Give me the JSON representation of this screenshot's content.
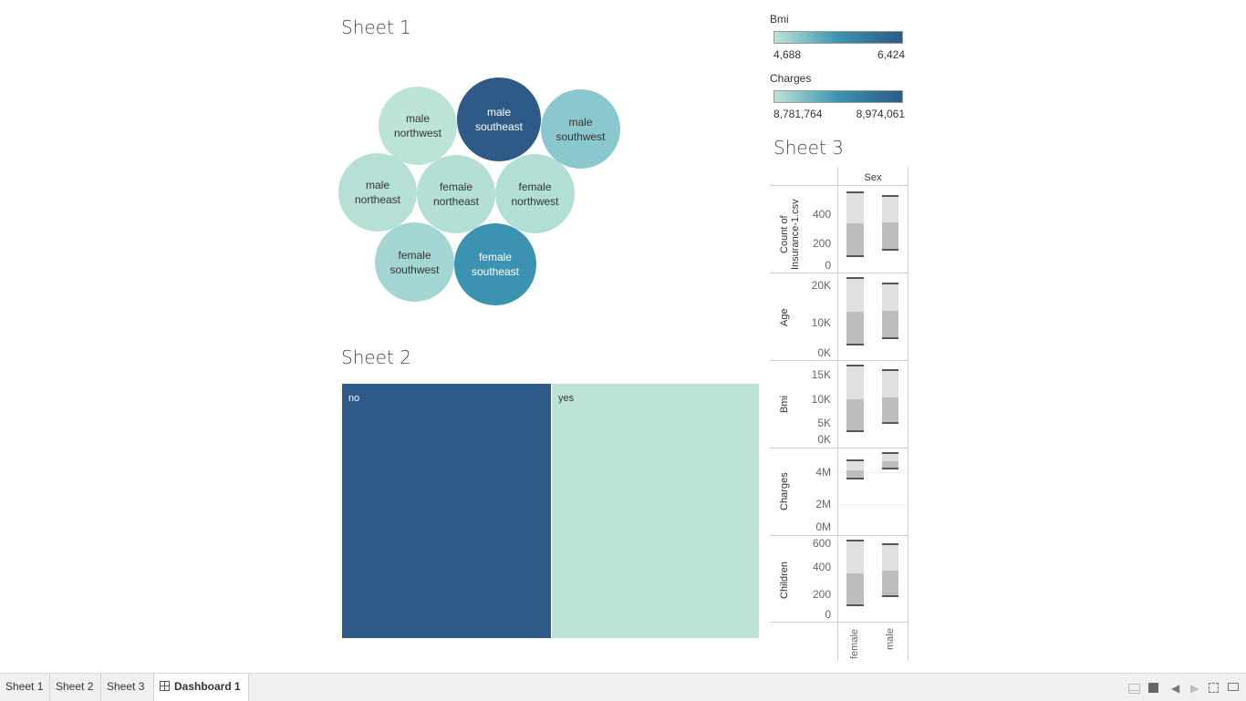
{
  "sheet1": {
    "title": "Sheet 1",
    "bubbles": [
      {
        "line1": "male",
        "line2": "northwest",
        "color": "#bde3d8"
      },
      {
        "line1": "male",
        "line2": "southeast",
        "color": "#2d5a87"
      },
      {
        "line1": "male",
        "line2": "southwest",
        "color": "#8ac8ce"
      },
      {
        "line1": "male",
        "line2": "northeast",
        "color": "#b6e0d6"
      },
      {
        "line1": "female",
        "line2": "northeast",
        "color": "#b3dfd5"
      },
      {
        "line1": "female",
        "line2": "northwest",
        "color": "#b1ded5"
      },
      {
        "line1": "female",
        "line2": "southwest",
        "color": "#a3d6d2"
      },
      {
        "line1": "female",
        "line2": "southeast",
        "color": "#3b93b1"
      }
    ]
  },
  "sheet2": {
    "title": "Sheet 2",
    "cells": [
      {
        "label": "no",
        "color": "#2d5a87"
      },
      {
        "label": "yes",
        "color": "#bde3d8"
      }
    ]
  },
  "legends": {
    "bmi": {
      "title": "Bmi",
      "min": "4,688",
      "max": "6,424"
    },
    "charges": {
      "title": "Charges",
      "min": "8,781,764",
      "max": "8,974,061"
    },
    "colors": {
      "low": "#bde3d8",
      "mid": "#3b93b1",
      "high": "#2d5a87"
    }
  },
  "sheet3": {
    "title": "Sheet 3",
    "column_header": "Sex",
    "categories": [
      "female",
      "male"
    ],
    "rows": [
      {
        "label": "Count of Insurance-1.csv",
        "label_line1": "Count of",
        "label_line2": "Insurance-1.csv",
        "ticks": [
          "400",
          "200",
          "0"
        ]
      },
      {
        "label": "Age",
        "ticks": [
          "20K",
          "10K",
          "0K"
        ]
      },
      {
        "label": "Bmi",
        "ticks": [
          "15K",
          "10K",
          "5K",
          "0K"
        ]
      },
      {
        "label": "Charges",
        "ticks": [
          "4M",
          "2M",
          "0M"
        ]
      },
      {
        "label": "Children",
        "ticks": [
          "600",
          "400",
          "200",
          "0"
        ]
      }
    ]
  },
  "tabs": [
    {
      "label": "Sheet 1",
      "active": false
    },
    {
      "label": "Sheet 2",
      "active": false
    },
    {
      "label": "Sheet 3",
      "active": false
    },
    {
      "label": "Dashboard 1",
      "active": true
    }
  ],
  "icons": {
    "dashboard_tab": "grid-icon",
    "bottom_right": [
      "filmstrip-icon",
      "grid-view-icon",
      "prev-arrow-icon",
      "next-arrow-icon",
      "fullscreen-icon",
      "presentation-icon"
    ]
  }
}
